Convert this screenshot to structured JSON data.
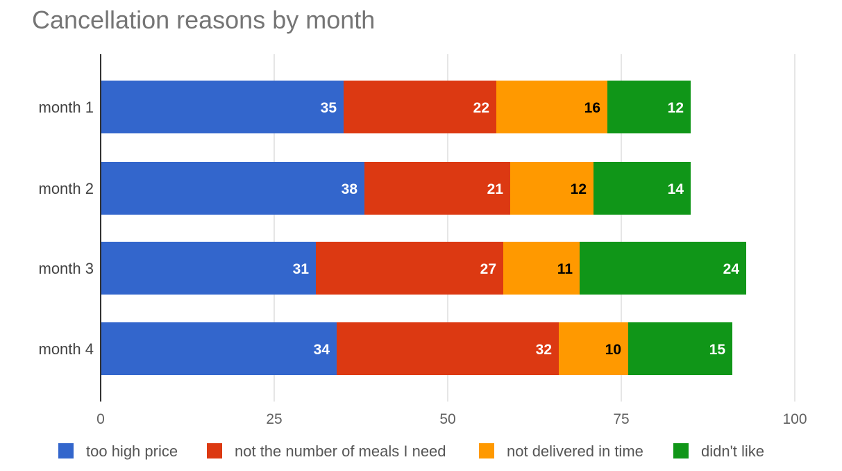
{
  "chart_data": {
    "type": "bar",
    "orientation": "horizontal",
    "stacked": true,
    "title": "Cancellation reasons by month",
    "categories": [
      "month 1",
      "month 2",
      "month 3",
      "month 4"
    ],
    "series": [
      {
        "name": "too high price",
        "color": "#3366cc",
        "label_color": "#ffffff",
        "values": [
          35,
          38,
          31,
          34
        ]
      },
      {
        "name": "not the number of meals I need",
        "color": "#dc3912",
        "label_color": "#ffffff",
        "values": [
          22,
          21,
          27,
          32
        ]
      },
      {
        "name": "not delivered in time",
        "color": "#ff9900",
        "label_color": "#000000",
        "values": [
          16,
          12,
          11,
          10
        ]
      },
      {
        "name": "didn't like",
        "color": "#109618",
        "label_color": "#ffffff",
        "values": [
          12,
          14,
          24,
          15
        ]
      }
    ],
    "xlim": [
      0,
      100
    ],
    "xticks": [
      "0",
      "25",
      "50",
      "75",
      "100"
    ],
    "grid": true,
    "legend": "bottom"
  }
}
